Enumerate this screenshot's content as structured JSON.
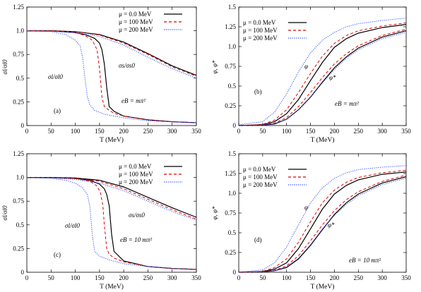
{
  "figure": {
    "panels": [
      {
        "tag": "(a)",
        "ylabel": "σl/σl0"
      },
      {
        "tag": "(b)",
        "ylabel": "φ, φ*"
      },
      {
        "tag": "(c)",
        "ylabel": "σl/σl0"
      },
      {
        "tag": "(d)",
        "ylabel": "φ, φ*"
      }
    ]
  },
  "chart_data": [
    {
      "type": "line",
      "panel": "a",
      "xlabel": "T (MeV)",
      "ylabel": "σl/σl0",
      "xlim": [
        0,
        350
      ],
      "ylim": [
        0,
        1.25
      ],
      "xticks": [
        "0",
        "50",
        "100",
        "150",
        "200",
        "250",
        "300",
        "350"
      ],
      "yticks": [
        "0",
        "0.25",
        "0.5",
        "0.75",
        "1.0",
        "1.25"
      ],
      "legend_position": "top-right",
      "annotations": [
        "σl/σl0",
        "σs/σs0",
        "eB = mπ²",
        "(a)"
      ],
      "series": [
        {
          "name": "μ = 0.0 MeV",
          "group": "light",
          "color": "#000000",
          "dash": "solid",
          "x": [
            0,
            50,
            100,
            120,
            140,
            150,
            155,
            160,
            165,
            170,
            180,
            200,
            250,
            300,
            350
          ],
          "y": [
            1.0,
            1.0,
            0.98,
            0.96,
            0.92,
            0.87,
            0.8,
            0.65,
            0.4,
            0.2,
            0.15,
            0.1,
            0.06,
            0.04,
            0.03
          ]
        },
        {
          "name": "μ = 100 MeV",
          "group": "light",
          "color": "#e00000",
          "dash": "dashed",
          "x": [
            0,
            50,
            100,
            120,
            135,
            145,
            150,
            155,
            160,
            170,
            180,
            200,
            250,
            300,
            350
          ],
          "y": [
            1.0,
            1.0,
            0.98,
            0.95,
            0.9,
            0.8,
            0.6,
            0.3,
            0.2,
            0.16,
            0.13,
            0.1,
            0.06,
            0.04,
            0.03
          ]
        },
        {
          "name": "μ = 200 MeV",
          "group": "light",
          "color": "#2a4bff",
          "dash": "dotted",
          "x": [
            0,
            50,
            80,
            100,
            110,
            115,
            120,
            125,
            130,
            140,
            160,
            200,
            250,
            300,
            350
          ],
          "y": [
            1.0,
            0.99,
            0.96,
            0.9,
            0.84,
            0.72,
            0.5,
            0.3,
            0.22,
            0.16,
            0.12,
            0.08,
            0.05,
            0.04,
            0.03
          ]
        },
        {
          "name": "μ = 0.0 MeV",
          "group": "strange",
          "color": "#000000",
          "dash": "solid",
          "x": [
            0,
            50,
            100,
            150,
            200,
            250,
            300,
            350
          ],
          "y": [
            1.0,
            1.0,
            0.99,
            0.96,
            0.88,
            0.76,
            0.63,
            0.53
          ]
        },
        {
          "name": "μ = 100 MeV",
          "group": "strange",
          "color": "#e00000",
          "dash": "dashed",
          "x": [
            0,
            50,
            100,
            150,
            200,
            250,
            300,
            350
          ],
          "y": [
            1.0,
            1.0,
            0.99,
            0.955,
            0.87,
            0.75,
            0.62,
            0.52
          ]
        },
        {
          "name": "μ = 200 MeV",
          "group": "strange",
          "color": "#2a4bff",
          "dash": "dotted",
          "x": [
            0,
            50,
            100,
            150,
            200,
            250,
            300,
            350
          ],
          "y": [
            1.0,
            0.995,
            0.98,
            0.94,
            0.85,
            0.72,
            0.6,
            0.5
          ]
        }
      ]
    },
    {
      "type": "line",
      "panel": "b",
      "xlabel": "T (MeV)",
      "ylabel": "φ, φ*",
      "xlim": [
        0,
        350
      ],
      "ylim": [
        0,
        1.5
      ],
      "xticks": [
        "0",
        "50",
        "100",
        "150",
        "200",
        "250",
        "300",
        "350"
      ],
      "yticks": [
        "0",
        "0.25",
        "0.5",
        "0.75",
        "1.0",
        "1.25",
        "1.5"
      ],
      "legend_position": "top-left",
      "annotations": [
        "φ",
        "φ*",
        "eB = mπ²",
        "(b)"
      ],
      "series": [
        {
          "name": "μ = 0.0 MeV",
          "group": "phi",
          "color": "#000000",
          "dash": "solid",
          "x": [
            0,
            50,
            75,
            100,
            125,
            150,
            175,
            200,
            225,
            250,
            300,
            350
          ],
          "y": [
            0.0,
            0.01,
            0.05,
            0.15,
            0.33,
            0.57,
            0.8,
            0.99,
            1.1,
            1.17,
            1.24,
            1.28
          ]
        },
        {
          "name": "μ = 100 MeV",
          "group": "phi",
          "color": "#e00000",
          "dash": "dashed",
          "x": [
            0,
            50,
            75,
            100,
            125,
            150,
            175,
            200,
            225,
            250,
            300,
            350
          ],
          "y": [
            0.0,
            0.015,
            0.07,
            0.2,
            0.42,
            0.66,
            0.88,
            1.04,
            1.14,
            1.2,
            1.26,
            1.3
          ]
        },
        {
          "name": "μ = 200 MeV",
          "group": "phi",
          "color": "#2a4bff",
          "dash": "dotted",
          "x": [
            0,
            50,
            75,
            100,
            125,
            150,
            175,
            200,
            225,
            250,
            300,
            350
          ],
          "y": [
            0.01,
            0.05,
            0.17,
            0.4,
            0.68,
            0.92,
            1.08,
            1.18,
            1.25,
            1.29,
            1.33,
            1.36
          ]
        },
        {
          "name": "μ = 0.0 MeV",
          "group": "phi-star",
          "color": "#000000",
          "dash": "solid",
          "x": [
            0,
            50,
            75,
            100,
            125,
            150,
            175,
            200,
            225,
            250,
            300,
            350
          ],
          "y": [
            0.0,
            0.005,
            0.02,
            0.08,
            0.2,
            0.36,
            0.55,
            0.73,
            0.87,
            0.98,
            1.12,
            1.2
          ]
        },
        {
          "name": "μ = 100 MeV",
          "group": "phi-star",
          "color": "#e00000",
          "dash": "dashed",
          "x": [
            0,
            50,
            75,
            100,
            125,
            150,
            175,
            200,
            225,
            250,
            300,
            350
          ],
          "y": [
            0.0,
            0.007,
            0.03,
            0.1,
            0.24,
            0.42,
            0.61,
            0.78,
            0.91,
            1.01,
            1.14,
            1.22
          ]
        },
        {
          "name": "μ = 200 MeV",
          "group": "phi-star",
          "color": "#2a4bff",
          "dash": "dotted",
          "x": [
            0,
            50,
            75,
            100,
            125,
            150,
            175,
            200,
            225,
            250,
            300,
            350
          ],
          "y": [
            0.0,
            0.006,
            0.025,
            0.08,
            0.2,
            0.36,
            0.54,
            0.71,
            0.85,
            0.96,
            1.1,
            1.18
          ]
        }
      ]
    },
    {
      "type": "line",
      "panel": "c",
      "xlabel": "T (MeV)",
      "ylabel": "σl/σl0",
      "xlim": [
        0,
        350
      ],
      "ylim": [
        0,
        1.25
      ],
      "xticks": [
        "0",
        "50",
        "100",
        "150",
        "200",
        "250",
        "300",
        "350"
      ],
      "yticks": [
        "0",
        "0.25",
        "0.5",
        "0.75",
        "1.0",
        "1.25"
      ],
      "legend_position": "top-right",
      "annotations": [
        "σl/σl0",
        "σs/σs0",
        "eB = 10 mπ²",
        "(c)"
      ],
      "series": [
        {
          "name": "μ = 0.0 MeV",
          "group": "light",
          "color": "#000000",
          "dash": "solid",
          "x": [
            0,
            50,
            100,
            130,
            150,
            160,
            165,
            170,
            175,
            180,
            200,
            250,
            300,
            350
          ],
          "y": [
            1.0,
            1.0,
            0.99,
            0.97,
            0.93,
            0.88,
            0.82,
            0.7,
            0.4,
            0.22,
            0.12,
            0.06,
            0.04,
            0.03
          ]
        },
        {
          "name": "μ = 100 MeV",
          "group": "light",
          "color": "#e00000",
          "dash": "dashed",
          "x": [
            0,
            50,
            100,
            130,
            145,
            152,
            157,
            160,
            165,
            170,
            180,
            200,
            250,
            300,
            350
          ],
          "y": [
            1.0,
            1.0,
            0.99,
            0.96,
            0.91,
            0.84,
            0.7,
            0.5,
            0.25,
            0.19,
            0.15,
            0.11,
            0.06,
            0.04,
            0.03
          ]
        },
        {
          "name": "μ = 200 MeV",
          "group": "light",
          "color": "#2a4bff",
          "dash": "dotted",
          "x": [
            0,
            50,
            80,
            100,
            115,
            125,
            130,
            135,
            140,
            150,
            170,
            200,
            250,
            300,
            350
          ],
          "y": [
            1.0,
            0.99,
            0.97,
            0.94,
            0.89,
            0.82,
            0.7,
            0.4,
            0.22,
            0.17,
            0.13,
            0.09,
            0.06,
            0.04,
            0.03
          ]
        },
        {
          "name": "μ = 0.0 MeV",
          "group": "strange",
          "color": "#000000",
          "dash": "solid",
          "x": [
            0,
            50,
            100,
            150,
            200,
            250,
            300,
            350
          ],
          "y": [
            1.0,
            1.0,
            0.995,
            0.97,
            0.9,
            0.79,
            0.68,
            0.58
          ]
        },
        {
          "name": "μ = 100 MeV",
          "group": "strange",
          "color": "#e00000",
          "dash": "dashed",
          "x": [
            0,
            50,
            100,
            150,
            200,
            250,
            300,
            350
          ],
          "y": [
            1.0,
            1.0,
            0.99,
            0.96,
            0.88,
            0.77,
            0.66,
            0.56
          ]
        },
        {
          "name": "μ = 200 MeV",
          "group": "strange",
          "color": "#2a4bff",
          "dash": "dotted",
          "x": [
            0,
            50,
            100,
            150,
            200,
            250,
            300,
            350
          ],
          "y": [
            1.0,
            0.995,
            0.98,
            0.94,
            0.86,
            0.75,
            0.64,
            0.55
          ]
        }
      ]
    },
    {
      "type": "line",
      "panel": "d",
      "xlabel": "T (MeV)",
      "ylabel": "φ, φ*",
      "xlim": [
        0,
        350
      ],
      "ylim": [
        0,
        1.5
      ],
      "xticks": [
        "0",
        "50",
        "100",
        "150",
        "200",
        "250",
        "300",
        "350"
      ],
      "yticks": [
        "0",
        "0.25",
        "0.5",
        "0.75",
        "1.0",
        "1.25",
        "1.5"
      ],
      "legend_position": "top-left",
      "annotations": [
        "φ",
        "φ*",
        "eB = 10 mπ²",
        "(d)"
      ],
      "series": [
        {
          "name": "μ = 0.0 MeV",
          "group": "phi",
          "color": "#000000",
          "dash": "solid",
          "x": [
            0,
            50,
            75,
            100,
            125,
            150,
            175,
            200,
            225,
            250,
            300,
            350
          ],
          "y": [
            0.0,
            0.008,
            0.04,
            0.12,
            0.3,
            0.55,
            0.8,
            0.99,
            1.1,
            1.17,
            1.24,
            1.27
          ]
        },
        {
          "name": "μ = 100 MeV",
          "group": "phi",
          "color": "#e00000",
          "dash": "dashed",
          "x": [
            0,
            50,
            75,
            100,
            125,
            150,
            175,
            200,
            225,
            250,
            300,
            350
          ],
          "y": [
            0.0,
            0.012,
            0.06,
            0.17,
            0.38,
            0.64,
            0.88,
            1.04,
            1.14,
            1.2,
            1.26,
            1.29
          ]
        },
        {
          "name": "μ = 200 MeV",
          "group": "phi",
          "color": "#2a4bff",
          "dash": "dotted",
          "x": [
            0,
            50,
            75,
            100,
            125,
            150,
            175,
            200,
            225,
            250,
            300,
            350
          ],
          "y": [
            0.0,
            0.03,
            0.12,
            0.32,
            0.6,
            0.88,
            1.07,
            1.19,
            1.26,
            1.3,
            1.33,
            1.35
          ]
        },
        {
          "name": "μ = 0.0 MeV",
          "group": "phi-star",
          "color": "#000000",
          "dash": "solid",
          "x": [
            0,
            50,
            75,
            100,
            125,
            150,
            175,
            200,
            225,
            250,
            300,
            350
          ],
          "y": [
            0.0,
            0.004,
            0.02,
            0.06,
            0.17,
            0.34,
            0.54,
            0.73,
            0.88,
            0.99,
            1.13,
            1.21
          ]
        },
        {
          "name": "μ = 100 MeV",
          "group": "phi-star",
          "color": "#e00000",
          "dash": "dashed",
          "x": [
            0,
            50,
            75,
            100,
            125,
            150,
            175,
            200,
            225,
            250,
            300,
            350
          ],
          "y": [
            0.0,
            0.006,
            0.025,
            0.08,
            0.21,
            0.4,
            0.6,
            0.78,
            0.92,
            1.02,
            1.15,
            1.23
          ]
        },
        {
          "name": "μ = 200 MeV",
          "group": "phi-star",
          "color": "#2a4bff",
          "dash": "dotted",
          "x": [
            0,
            50,
            75,
            100,
            125,
            150,
            175,
            200,
            225,
            250,
            300,
            350
          ],
          "y": [
            0.0,
            0.005,
            0.02,
            0.07,
            0.18,
            0.35,
            0.55,
            0.72,
            0.86,
            0.97,
            1.11,
            1.19
          ]
        }
      ]
    }
  ]
}
